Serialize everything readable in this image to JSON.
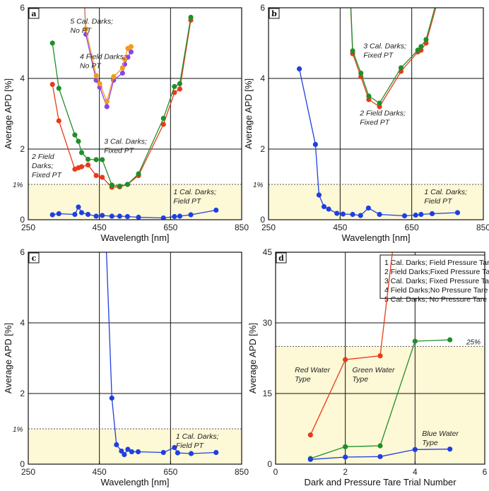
{
  "chart_data": [
    {
      "type": "line",
      "panel": "a",
      "xlabel": "Wavelength [nm]",
      "ylabel": "Average APD [%]",
      "xlim": [
        250,
        850
      ],
      "ylim": [
        0,
        6
      ],
      "xticks": [
        250,
        450,
        650,
        850
      ],
      "yticks": [
        0,
        2,
        4,
        6
      ],
      "xtick_labels": [
        "250",
        "450",
        "650",
        "850"
      ],
      "ytick_labels": [
        "0",
        "2",
        "4",
        "6"
      ],
      "ref_line": {
        "y": 1,
        "label": "1%"
      },
      "grid_x": [
        450,
        650
      ],
      "grid_y": [
        2,
        4
      ],
      "annotations": [
        {
          "lines": [
            "5 Cal. Darks;",
            "No PT"
          ],
          "x": 368,
          "y": 5.55
        },
        {
          "lines": [
            "4 Field Darks;",
            "No PT"
          ],
          "x": 395,
          "y": 4.55
        },
        {
          "lines": [
            "3 Cal. Darks;",
            "Fixed PT"
          ],
          "x": 463,
          "y": 2.15
        },
        {
          "lines": [
            "2 Field",
            "Darks;",
            "Fixed PT"
          ],
          "x": 260,
          "y": 1.72
        },
        {
          "lines": [
            "1 Cal. Darks;",
            "Field PT"
          ],
          "x": 658,
          "y": 0.72
        }
      ],
      "series": [
        {
          "color": "#1f3fe0",
          "x": [
            318,
            336,
            381,
            391,
            400,
            418,
            441,
            458,
            485,
            507,
            529,
            560,
            630,
            661,
            676,
            707,
            778
          ],
          "y": [
            0.14,
            0.17,
            0.15,
            0.36,
            0.2,
            0.15,
            0.1,
            0.12,
            0.1,
            0.1,
            0.09,
            0.07,
            0.05,
            0.09,
            0.1,
            0.14,
            0.27
          ]
        },
        {
          "color": "#e83a1a",
          "x": [
            318,
            336,
            381,
            391,
            400,
            418,
            441,
            458,
            485,
            507,
            529,
            560,
            630,
            661,
            676,
            707
          ],
          "y": [
            3.83,
            2.8,
            1.43,
            1.47,
            1.5,
            1.55,
            1.25,
            1.2,
            0.92,
            0.93,
            1.0,
            1.25,
            2.7,
            3.6,
            3.7,
            5.65
          ]
        },
        {
          "color": "#1f8f2a",
          "x": [
            318,
            336,
            381,
            391,
            400,
            418,
            441,
            458,
            485,
            507,
            529,
            560,
            630,
            661,
            676,
            707
          ],
          "y": [
            5.0,
            3.72,
            2.4,
            2.22,
            1.9,
            1.71,
            1.7,
            1.7,
            0.98,
            0.95,
            1.0,
            1.3,
            2.87,
            3.77,
            3.85,
            5.73
          ]
        },
        {
          "color": "#8a45e8",
          "x": [
            405,
            412,
            441,
            451,
            471,
            490,
            515,
            521,
            530,
            539
          ],
          "y": [
            6.8,
            5.25,
            3.95,
            3.75,
            3.2,
            3.95,
            4.15,
            4.4,
            4.6,
            4.75
          ]
        },
        {
          "color": "#f59a1a",
          "x": [
            405,
            412,
            441,
            451,
            471,
            490,
            515,
            521,
            530,
            539
          ],
          "y": [
            7.0,
            5.4,
            4.08,
            3.85,
            3.35,
            4.05,
            4.3,
            4.55,
            4.85,
            4.9
          ]
        }
      ]
    },
    {
      "type": "line",
      "panel": "b",
      "xlabel": "Wavelength [nm]",
      "ylabel": "Average APD [%]",
      "xlim": [
        250,
        850
      ],
      "ylim": [
        0,
        6
      ],
      "xticks": [
        250,
        450,
        650,
        850
      ],
      "yticks": [
        0,
        2,
        4,
        6
      ],
      "xtick_labels": [
        "250",
        "450",
        "650",
        "850"
      ],
      "ytick_labels": [
        "0",
        "2",
        "4",
        "6"
      ],
      "ref_line": {
        "y": 1,
        "label": "1%"
      },
      "grid_x": [
        450,
        650
      ],
      "grid_y": [
        2,
        4
      ],
      "annotations": [
        {
          "lines": [
            "3 Cal. Darks;",
            "Fixed PT"
          ],
          "x": 515,
          "y": 4.85
        },
        {
          "lines": [
            "2 Field Darks;",
            "Fixed PT"
          ],
          "x": 505,
          "y": 2.95
        },
        {
          "lines": [
            "1 Cal. Darks;",
            "Field PT"
          ],
          "x": 685,
          "y": 0.72
        }
      ],
      "series": [
        {
          "color": "#1f3fe0",
          "x": [
            336,
            381,
            391,
            405,
            418,
            441,
            458,
            485,
            507,
            529,
            560,
            630,
            661,
            676,
            707,
            778
          ],
          "y": [
            4.27,
            2.13,
            0.7,
            0.37,
            0.3,
            0.18,
            0.16,
            0.15,
            0.12,
            0.33,
            0.15,
            0.11,
            0.13,
            0.15,
            0.17,
            0.2
          ]
        },
        {
          "color": "#e83a1a",
          "x": [
            478,
            485,
            508,
            530,
            560,
            620,
            667,
            676,
            690,
            720
          ],
          "y": [
            6.4,
            4.7,
            4.05,
            3.4,
            3.2,
            4.2,
            4.75,
            4.8,
            5.0,
            6.1
          ]
        },
        {
          "color": "#1f8f2a",
          "x": [
            478,
            485,
            508,
            530,
            560,
            620,
            667,
            676,
            690,
            720
          ],
          "y": [
            6.5,
            4.78,
            4.15,
            3.5,
            3.3,
            4.3,
            4.8,
            4.9,
            5.1,
            6.2
          ]
        }
      ]
    },
    {
      "type": "line",
      "panel": "c",
      "xlabel": "Wavelength [nm]",
      "ylabel": "Average APD [%]",
      "xlim": [
        250,
        850
      ],
      "ylim": [
        0,
        6
      ],
      "xticks": [
        250,
        450,
        650,
        850
      ],
      "yticks": [
        0,
        2,
        4,
        6
      ],
      "xtick_labels": [
        "250",
        "450",
        "650",
        "850"
      ],
      "ytick_labels": [
        "0",
        "2",
        "4",
        "6"
      ],
      "ref_line": {
        "y": 1,
        "label": "1%"
      },
      "grid_x": [
        450,
        650
      ],
      "grid_y": [
        2,
        4
      ],
      "annotations": [
        {
          "lines": [
            "1 Cal. Darks;",
            "Field PT"
          ],
          "x": 665,
          "y": 0.72
        }
      ],
      "series": [
        {
          "color": "#1f3fe0",
          "x": [
            468,
            485,
            498,
            512,
            520,
            530,
            541,
            559,
            630,
            661,
            670,
            708,
            778
          ],
          "y": [
            6.5,
            1.87,
            0.55,
            0.37,
            0.27,
            0.42,
            0.35,
            0.35,
            0.33,
            0.47,
            0.32,
            0.3,
            0.33
          ]
        }
      ]
    },
    {
      "type": "line",
      "panel": "d",
      "xlabel": "Dark and Pressure Tare Trial Number",
      "ylabel": "Average APD [%]",
      "xlim": [
        0,
        6
      ],
      "ylim": [
        0,
        45
      ],
      "xticks": [
        0,
        2,
        4,
        6
      ],
      "yticks": [
        0,
        15,
        30,
        45
      ],
      "xtick_labels": [
        "0",
        "2",
        "4",
        "6"
      ],
      "ytick_labels": [
        "0",
        "15",
        "30",
        "45"
      ],
      "ref_line": {
        "y": 25,
        "label": "25%"
      },
      "grid_x": [
        2,
        4
      ],
      "grid_y": [
        15,
        30
      ],
      "legend": {
        "placement": "top-right",
        "entries": [
          "1 Cal. Darks;  Field Pressure Tare",
          "2 Field Darks;Fixed Pressure Tare",
          "3 Cal. Darks;  Fixed Pressure Tare",
          "4 Field Darks;No Pressure Tare",
          "5 Cal. Darks;  No Pressure Tare"
        ]
      },
      "annotations": [
        {
          "lines": [
            "Red Water",
            "Type"
          ],
          "x": 0.55,
          "y": 19.5
        },
        {
          "lines": [
            "Green Water",
            "Type"
          ],
          "x": 2.2,
          "y": 19.5
        },
        {
          "lines": [
            "Blue Water",
            "Type"
          ],
          "x": 4.2,
          "y": 6.0
        }
      ],
      "series": [
        {
          "name": "Red Water Type",
          "color": "#e83a1a",
          "x": [
            1,
            2,
            3,
            3.4
          ],
          "y": [
            6.2,
            22.2,
            23.0,
            48
          ]
        },
        {
          "name": "Green Water Type",
          "color": "#1f8f2a",
          "x": [
            1,
            2,
            3,
            4,
            5
          ],
          "y": [
            1.2,
            3.7,
            3.9,
            26.1,
            26.4
          ]
        },
        {
          "name": "Blue Water Type",
          "color": "#1f3fe0",
          "x": [
            1,
            2,
            3,
            4,
            5
          ],
          "y": [
            1.0,
            1.5,
            1.6,
            3.1,
            3.2
          ]
        }
      ]
    }
  ],
  "panel_labels": [
    "a",
    "b",
    "c",
    "d"
  ],
  "colors": {
    "highlight": "#fdf8d6",
    "grid": "#111111"
  }
}
